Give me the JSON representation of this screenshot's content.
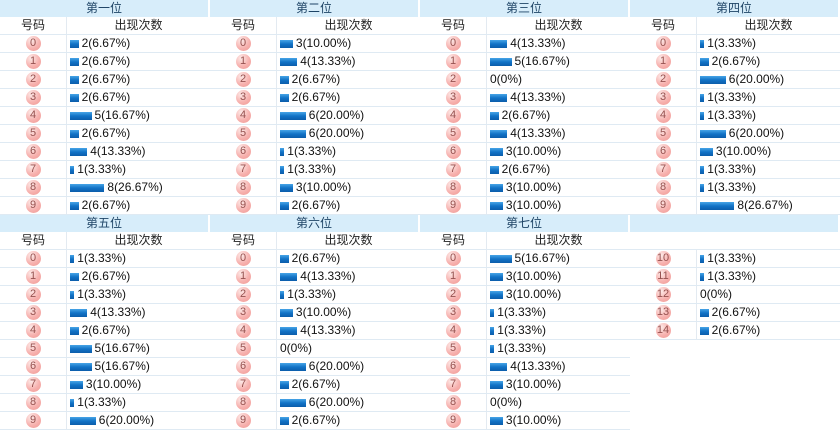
{
  "colors": {
    "title_bar_bg": "#d7edfa",
    "title_text": "#1e4466",
    "bar_blue": "#1273c6",
    "ball_pink": "#f7b2af",
    "ball_text": "#96514f",
    "row_separator": "#dfeaf3"
  },
  "chart_data": [
    {
      "type": "bar",
      "title": "第一位",
      "number_header": "号码",
      "count_header": "出现次数",
      "categories": [
        "0",
        "1",
        "2",
        "3",
        "4",
        "5",
        "6",
        "7",
        "8",
        "9"
      ],
      "values": [
        2,
        2,
        2,
        2,
        5,
        2,
        4,
        1,
        8,
        2
      ],
      "labels": [
        "2(6.67%)",
        "2(6.67%)",
        "2(6.67%)",
        "2(6.67%)",
        "5(16.67%)",
        "2(6.67%)",
        "4(13.33%)",
        "1(3.33%)",
        "8(26.67%)",
        "2(6.67%)"
      ]
    },
    {
      "type": "bar",
      "title": "第二位",
      "number_header": "号码",
      "count_header": "出现次数",
      "categories": [
        "0",
        "1",
        "2",
        "3",
        "4",
        "5",
        "6",
        "7",
        "8",
        "9"
      ],
      "values": [
        3,
        4,
        2,
        2,
        6,
        6,
        1,
        1,
        3,
        2
      ],
      "labels": [
        "3(10.00%)",
        "4(13.33%)",
        "2(6.67%)",
        "2(6.67%)",
        "6(20.00%)",
        "6(20.00%)",
        "1(3.33%)",
        "1(3.33%)",
        "3(10.00%)",
        "2(6.67%)"
      ]
    },
    {
      "type": "bar",
      "title": "第三位",
      "number_header": "号码",
      "count_header": "出现次数",
      "categories": [
        "0",
        "1",
        "2",
        "3",
        "4",
        "5",
        "6",
        "7",
        "8",
        "9"
      ],
      "values": [
        4,
        5,
        0,
        4,
        2,
        4,
        3,
        2,
        3,
        3
      ],
      "labels": [
        "4(13.33%)",
        "5(16.67%)",
        "0(0%)",
        "4(13.33%)",
        "2(6.67%)",
        "4(13.33%)",
        "3(10.00%)",
        "2(6.67%)",
        "3(10.00%)",
        "3(10.00%)"
      ]
    },
    {
      "type": "bar",
      "title": "第四位",
      "number_header": "号码",
      "count_header": "出现次数",
      "categories": [
        "0",
        "1",
        "2",
        "3",
        "4",
        "5",
        "6",
        "7",
        "8",
        "9"
      ],
      "values": [
        1,
        2,
        6,
        1,
        1,
        6,
        3,
        1,
        1,
        8
      ],
      "labels": [
        "1(3.33%)",
        "2(6.67%)",
        "6(20.00%)",
        "1(3.33%)",
        "1(3.33%)",
        "6(20.00%)",
        "3(10.00%)",
        "1(3.33%)",
        "1(3.33%)",
        "8(26.67%)"
      ]
    },
    {
      "type": "bar",
      "title": "第五位",
      "number_header": "号码",
      "count_header": "出现次数",
      "categories": [
        "0",
        "1",
        "2",
        "3",
        "4",
        "5",
        "6",
        "7",
        "8",
        "9"
      ],
      "values": [
        1,
        2,
        1,
        4,
        2,
        5,
        5,
        3,
        1,
        6
      ],
      "labels": [
        "1(3.33%)",
        "2(6.67%)",
        "1(3.33%)",
        "4(13.33%)",
        "2(6.67%)",
        "5(16.67%)",
        "5(16.67%)",
        "3(10.00%)",
        "1(3.33%)",
        "6(20.00%)"
      ]
    },
    {
      "type": "bar",
      "title": "第六位",
      "number_header": "号码",
      "count_header": "出现次数",
      "categories": [
        "0",
        "1",
        "2",
        "3",
        "4",
        "5",
        "6",
        "7",
        "8",
        "9"
      ],
      "values": [
        2,
        4,
        1,
        3,
        4,
        0,
        6,
        2,
        6,
        2
      ],
      "labels": [
        "2(6.67%)",
        "4(13.33%)",
        "1(3.33%)",
        "3(10.00%)",
        "4(13.33%)",
        "0(0%)",
        "6(20.00%)",
        "2(6.67%)",
        "6(20.00%)",
        "2(6.67%)"
      ]
    },
    {
      "type": "bar",
      "title": "第七位",
      "number_header": "号码",
      "count_header": "出现次数",
      "categories": [
        "0",
        "1",
        "2",
        "3",
        "4",
        "5",
        "6",
        "7",
        "8",
        "9"
      ],
      "values": [
        5,
        3,
        3,
        1,
        1,
        1,
        4,
        3,
        0,
        3
      ],
      "labels": [
        "5(16.67%)",
        "3(10.00%)",
        "3(10.00%)",
        "1(3.33%)",
        "1(3.33%)",
        "1(3.33%)",
        "4(13.33%)",
        "3(10.00%)",
        "0(0%)",
        "3(10.00%)"
      ]
    },
    {
      "type": "bar",
      "title": "",
      "number_header": "",
      "count_header": "",
      "categories": [
        "10",
        "11",
        "12",
        "13",
        "14"
      ],
      "values": [
        1,
        1,
        0,
        2,
        2
      ],
      "labels": [
        "1(3.33%)",
        "1(3.33%)",
        "0(0%)",
        "2(6.67%)",
        "2(6.67%)"
      ]
    }
  ]
}
